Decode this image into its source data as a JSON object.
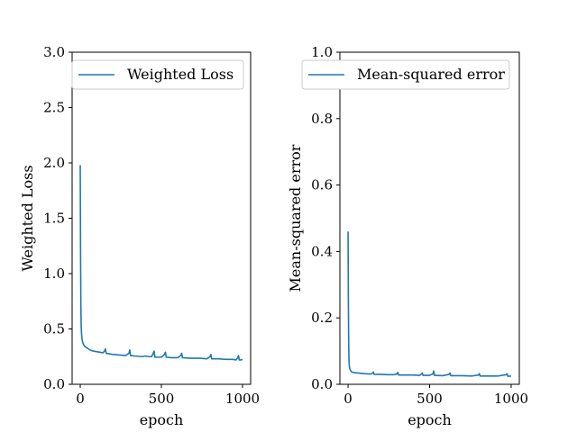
{
  "colors": {
    "series": "#1f77b4"
  },
  "chart_data": [
    {
      "type": "line",
      "xlabel": "epoch",
      "ylabel": "Weighted Loss",
      "xlim": [
        -50,
        1050
      ],
      "ylim": [
        0,
        3.0
      ],
      "xticks": [
        0,
        500,
        1000
      ],
      "xtick_labels": [
        "0",
        "500",
        "1000"
      ],
      "yticks": [
        0.0,
        0.5,
        1.0,
        1.5,
        2.0,
        2.5,
        3.0
      ],
      "ytick_labels": [
        "0.0",
        "0.5",
        "1.0",
        "1.5",
        "2.0",
        "2.5",
        "3.0"
      ],
      "legend_position": "top-right",
      "grid": false,
      "series": [
        {
          "name": "Weighted Loss",
          "x": [
            0,
            2,
            4,
            6,
            8,
            10,
            15,
            20,
            30,
            40,
            50,
            60,
            80,
            100,
            120,
            140,
            150,
            155,
            160,
            180,
            200,
            240,
            280,
            300,
            305,
            310,
            340,
            380,
            400,
            420,
            440,
            450,
            455,
            460,
            500,
            520,
            525,
            530,
            560,
            600,
            620,
            625,
            630,
            680,
            700,
            740,
            780,
            800,
            805,
            810,
            850,
            900,
            940,
            960,
            970,
            975,
            980,
            990,
            1000
          ],
          "values": [
            1.98,
            1.2,
            0.7,
            0.52,
            0.46,
            0.42,
            0.38,
            0.36,
            0.34,
            0.33,
            0.32,
            0.31,
            0.3,
            0.295,
            0.29,
            0.285,
            0.3,
            0.32,
            0.28,
            0.275,
            0.27,
            0.265,
            0.26,
            0.28,
            0.31,
            0.26,
            0.255,
            0.25,
            0.255,
            0.25,
            0.25,
            0.28,
            0.3,
            0.245,
            0.245,
            0.27,
            0.29,
            0.245,
            0.24,
            0.24,
            0.26,
            0.28,
            0.24,
            0.235,
            0.235,
            0.235,
            0.23,
            0.25,
            0.27,
            0.23,
            0.23,
            0.225,
            0.225,
            0.22,
            0.24,
            0.26,
            0.22,
            0.22,
            0.225
          ]
        }
      ]
    },
    {
      "type": "line",
      "xlabel": "epoch",
      "ylabel": "Mean-squared error",
      "xlim": [
        -50,
        1050
      ],
      "ylim": [
        0,
        1.0
      ],
      "xticks": [
        0,
        500,
        1000
      ],
      "xtick_labels": [
        "0",
        "500",
        "1000"
      ],
      "yticks": [
        0.0,
        0.2,
        0.4,
        0.6,
        0.8,
        1.0
      ],
      "ytick_labels": [
        "0.0",
        "0.2",
        "0.4",
        "0.6",
        "0.8",
        "1.0"
      ],
      "legend_position": "top-right",
      "grid": false,
      "series": [
        {
          "name": "Mean-squared error",
          "x": [
            0,
            2,
            4,
            6,
            8,
            10,
            15,
            20,
            30,
            40,
            60,
            80,
            100,
            140,
            150,
            155,
            160,
            200,
            240,
            280,
            300,
            305,
            310,
            360,
            400,
            440,
            450,
            455,
            460,
            500,
            520,
            525,
            530,
            580,
            620,
            625,
            630,
            700,
            760,
            800,
            805,
            810,
            860,
            920,
            970,
            975,
            980,
            1000
          ],
          "values": [
            0.46,
            0.25,
            0.12,
            0.07,
            0.055,
            0.048,
            0.042,
            0.038,
            0.036,
            0.035,
            0.034,
            0.033,
            0.032,
            0.031,
            0.033,
            0.037,
            0.03,
            0.03,
            0.029,
            0.029,
            0.031,
            0.036,
            0.028,
            0.028,
            0.028,
            0.027,
            0.031,
            0.034,
            0.027,
            0.027,
            0.031,
            0.04,
            0.027,
            0.026,
            0.03,
            0.034,
            0.026,
            0.026,
            0.025,
            0.028,
            0.032,
            0.025,
            0.025,
            0.025,
            0.029,
            0.032,
            0.024,
            0.025
          ]
        }
      ]
    }
  ]
}
